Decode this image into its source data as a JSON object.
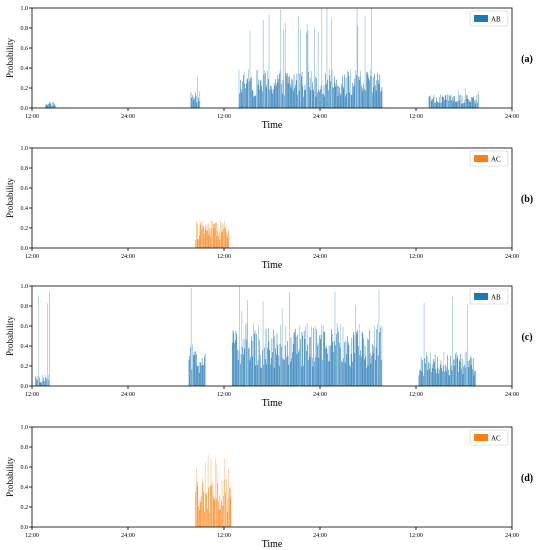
{
  "chart_data": [
    {
      "type": "bar",
      "panel_label": "(a)",
      "xlabel": "Time",
      "ylabel": "Probability",
      "xticks": [
        "12:00",
        "24:00",
        "12:00",
        "24:00",
        "12:00",
        "24:00"
      ],
      "yticks": [
        "0.0",
        "0.2",
        "0.4",
        "0.6",
        "0.8",
        "1.0"
      ],
      "ylim": [
        0,
        1
      ],
      "legend": {
        "label": "AB",
        "position": "top-right"
      },
      "series_color": "#1f77b4",
      "bursts": [
        {
          "start_h": 2.0,
          "end_h": 3.5,
          "bar_max": 0.22,
          "bar_typ": 0.05
        },
        {
          "start_h": 23.8,
          "end_h": 25.2,
          "bar_max": 0.31,
          "bar_typ": 0.12
        },
        {
          "start_h": 31.0,
          "end_h": 52.5,
          "bar_max": 1.0,
          "bar_typ": 0.28
        },
        {
          "start_h": 59.5,
          "end_h": 67.0,
          "bar_max": 0.2,
          "bar_typ": 0.1
        }
      ]
    },
    {
      "type": "bar",
      "panel_label": "(b)",
      "xlabel": "Time",
      "ylabel": "Probability",
      "xticks": [
        "12:00",
        "24:00",
        "12:00",
        "24:00",
        "12:00",
        "24:00"
      ],
      "yticks": [
        "0.0",
        "0.2",
        "0.4",
        "0.6",
        "0.8",
        "1.0"
      ],
      "ylim": [
        0,
        1
      ],
      "legend": {
        "label": "AC",
        "position": "top-right"
      },
      "series_color": "#ff7f0e",
      "bursts": [
        {
          "start_h": 24.5,
          "end_h": 29.5,
          "bar_max": 0.33,
          "bar_typ": 0.2
        }
      ]
    },
    {
      "type": "bar",
      "panel_label": "(c)",
      "xlabel": "Time",
      "ylabel": "Probability",
      "xticks": [
        "12:00",
        "24:00",
        "12:00",
        "24:00",
        "12:00",
        "24:00"
      ],
      "yticks": [
        "0.0",
        "0.2",
        "0.4",
        "0.6",
        "0.8",
        "1.0"
      ],
      "ylim": [
        0,
        1
      ],
      "legend": {
        "label": "AB",
        "position": "top-right"
      },
      "series_color": "#1f77b4",
      "bursts": [
        {
          "start_h": 0.5,
          "end_h": 2.6,
          "bar_max": 1.0,
          "bar_typ": 0.08
        },
        {
          "start_h": 23.5,
          "end_h": 26.0,
          "bar_max": 1.0,
          "bar_typ": 0.3
        },
        {
          "start_h": 30.0,
          "end_h": 52.5,
          "bar_max": 1.0,
          "bar_typ": 0.45
        },
        {
          "start_h": 58.0,
          "end_h": 66.5,
          "bar_max": 1.0,
          "bar_typ": 0.25
        }
      ]
    },
    {
      "type": "bar",
      "panel_label": "(d)",
      "xlabel": "Time",
      "ylabel": "Probability",
      "xticks": [
        "12:00",
        "24:00",
        "12:00",
        "24:00",
        "12:00",
        "24:00"
      ],
      "yticks": [
        "0.0",
        "0.2",
        "0.4",
        "0.6",
        "0.8",
        "1.0"
      ],
      "ylim": [
        0,
        1
      ],
      "legend": {
        "label": "AC",
        "position": "top-right"
      },
      "series_color": "#ff7f0e",
      "bursts": [
        {
          "start_h": 24.5,
          "end_h": 29.8,
          "bar_max": 0.76,
          "bar_typ": 0.35
        }
      ]
    }
  ]
}
